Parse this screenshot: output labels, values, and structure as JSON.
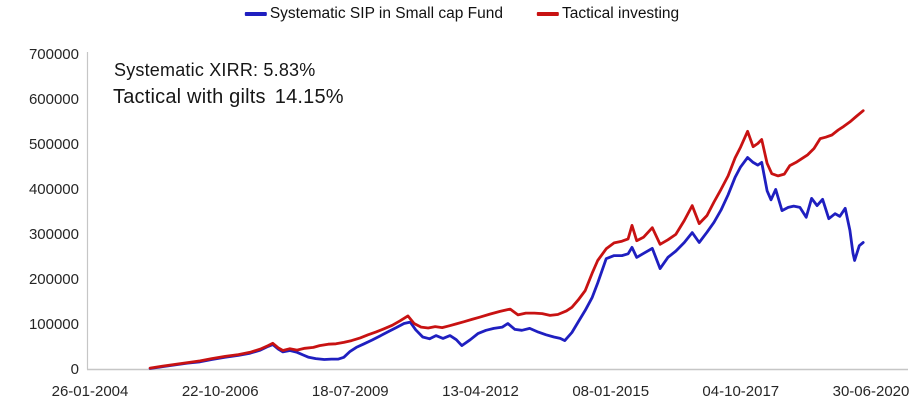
{
  "annotations": {
    "systematic_xirr": "Systematic XIRR: 5.83%",
    "tactical_label": "Tactical with gilts",
    "tactical_value": "14.15%"
  },
  "chart_data": {
    "type": "line",
    "title": "",
    "grid": false,
    "legend_position": "top",
    "x_axis": {
      "tick_labels": [
        "26-01-2004",
        "22-10-2006",
        "18-07-2009",
        "13-04-2012",
        "08-01-2015",
        "04-10-2017",
        "30-06-2020"
      ]
    },
    "y_axis": {
      "min": 0,
      "max": 700000,
      "tick_step": 100000,
      "tick_labels": [
        "0",
        "100000",
        "200000",
        "300000",
        "400000",
        "500000",
        "600000",
        "700000"
      ]
    },
    "series": [
      {
        "name": "Systematic SIP in Small cap Fund",
        "color": "#1f1fc0",
        "points": [
          [
            0.077,
            0
          ],
          [
            0.092,
            4000
          ],
          [
            0.109,
            8000
          ],
          [
            0.125,
            12000
          ],
          [
            0.141,
            15000
          ],
          [
            0.156,
            20000
          ],
          [
            0.173,
            25000
          ],
          [
            0.19,
            29000
          ],
          [
            0.205,
            34000
          ],
          [
            0.218,
            41000
          ],
          [
            0.228,
            49000
          ],
          [
            0.234,
            53000
          ],
          [
            0.241,
            43000
          ],
          [
            0.247,
            37000
          ],
          [
            0.256,
            40000
          ],
          [
            0.265,
            36000
          ],
          [
            0.273,
            30000
          ],
          [
            0.28,
            25000
          ],
          [
            0.289,
            22000
          ],
          [
            0.3,
            20000
          ],
          [
            0.309,
            21000
          ],
          [
            0.318,
            21000
          ],
          [
            0.325,
            25000
          ],
          [
            0.333,
            38000
          ],
          [
            0.341,
            47000
          ],
          [
            0.351,
            55000
          ],
          [
            0.361,
            63000
          ],
          [
            0.371,
            72000
          ],
          [
            0.382,
            82000
          ],
          [
            0.392,
            91000
          ],
          [
            0.402,
            100000
          ],
          [
            0.41,
            103000
          ],
          [
            0.417,
            86000
          ],
          [
            0.426,
            70000
          ],
          [
            0.435,
            66000
          ],
          [
            0.443,
            73000
          ],
          [
            0.452,
            67000
          ],
          [
            0.461,
            73000
          ],
          [
            0.469,
            64000
          ],
          [
            0.476,
            51000
          ],
          [
            0.487,
            64000
          ],
          [
            0.497,
            78000
          ],
          [
            0.507,
            85000
          ],
          [
            0.517,
            89000
          ],
          [
            0.528,
            92000
          ],
          [
            0.535,
            100000
          ],
          [
            0.544,
            87000
          ],
          [
            0.553,
            85000
          ],
          [
            0.563,
            89000
          ],
          [
            0.574,
            81000
          ],
          [
            0.584,
            75000
          ],
          [
            0.594,
            70000
          ],
          [
            0.602,
            67000
          ],
          [
            0.608,
            62000
          ],
          [
            0.617,
            80000
          ],
          [
            0.625,
            103000
          ],
          [
            0.634,
            129000
          ],
          [
            0.643,
            158000
          ],
          [
            0.65,
            190000
          ],
          [
            0.661,
            244000
          ],
          [
            0.671,
            251000
          ],
          [
            0.681,
            251000
          ],
          [
            0.689,
            255000
          ],
          [
            0.694,
            269000
          ],
          [
            0.7,
            247000
          ],
          [
            0.709,
            256000
          ],
          [
            0.72,
            267000
          ],
          [
            0.73,
            222000
          ],
          [
            0.74,
            247000
          ],
          [
            0.75,
            261000
          ],
          [
            0.761,
            280000
          ],
          [
            0.771,
            302000
          ],
          [
            0.78,
            280000
          ],
          [
            0.79,
            303000
          ],
          [
            0.799,
            325000
          ],
          [
            0.808,
            352000
          ],
          [
            0.817,
            386000
          ],
          [
            0.826,
            425000
          ],
          [
            0.833,
            448000
          ],
          [
            0.842,
            469000
          ],
          [
            0.849,
            458000
          ],
          [
            0.855,
            452000
          ],
          [
            0.86,
            458000
          ],
          [
            0.867,
            395000
          ],
          [
            0.872,
            375000
          ],
          [
            0.878,
            398000
          ],
          [
            0.886,
            351000
          ],
          [
            0.894,
            358000
          ],
          [
            0.901,
            361000
          ],
          [
            0.909,
            358000
          ],
          [
            0.917,
            336000
          ],
          [
            0.924,
            378000
          ],
          [
            0.931,
            362000
          ],
          [
            0.938,
            376000
          ],
          [
            0.946,
            333000
          ],
          [
            0.954,
            344000
          ],
          [
            0.96,
            338000
          ],
          [
            0.967,
            356000
          ],
          [
            0.973,
            307000
          ],
          [
            0.977,
            256000
          ],
          [
            0.979,
            240000
          ],
          [
            0.985,
            273000
          ],
          [
            0.99,
            280000
          ]
        ]
      },
      {
        "name": "Tactical investing",
        "color": "#c81212",
        "points": [
          [
            0.077,
            1000
          ],
          [
            0.092,
            5000
          ],
          [
            0.109,
            9000
          ],
          [
            0.125,
            13000
          ],
          [
            0.141,
            17000
          ],
          [
            0.156,
            22000
          ],
          [
            0.173,
            27000
          ],
          [
            0.19,
            31000
          ],
          [
            0.205,
            36000
          ],
          [
            0.218,
            43000
          ],
          [
            0.228,
            51000
          ],
          [
            0.234,
            56000
          ],
          [
            0.241,
            46000
          ],
          [
            0.247,
            40000
          ],
          [
            0.256,
            44000
          ],
          [
            0.265,
            41000
          ],
          [
            0.275,
            45000
          ],
          [
            0.286,
            47000
          ],
          [
            0.294,
            51000
          ],
          [
            0.305,
            54000
          ],
          [
            0.315,
            55000
          ],
          [
            0.325,
            58000
          ],
          [
            0.335,
            62000
          ],
          [
            0.346,
            68000
          ],
          [
            0.356,
            75000
          ],
          [
            0.366,
            81000
          ],
          [
            0.376,
            88000
          ],
          [
            0.387,
            96000
          ],
          [
            0.397,
            106000
          ],
          [
            0.407,
            117000
          ],
          [
            0.415,
            100000
          ],
          [
            0.424,
            92000
          ],
          [
            0.433,
            90000
          ],
          [
            0.442,
            93000
          ],
          [
            0.451,
            91000
          ],
          [
            0.46,
            95000
          ],
          [
            0.469,
            99000
          ],
          [
            0.479,
            104000
          ],
          [
            0.489,
            109000
          ],
          [
            0.499,
            114000
          ],
          [
            0.512,
            121000
          ],
          [
            0.525,
            127000
          ],
          [
            0.538,
            132000
          ],
          [
            0.548,
            119000
          ],
          [
            0.558,
            123000
          ],
          [
            0.569,
            123000
          ],
          [
            0.579,
            122000
          ],
          [
            0.589,
            118000
          ],
          [
            0.599,
            120000
          ],
          [
            0.61,
            128000
          ],
          [
            0.617,
            136000
          ],
          [
            0.625,
            152000
          ],
          [
            0.634,
            173000
          ],
          [
            0.643,
            212000
          ],
          [
            0.65,
            240000
          ],
          [
            0.661,
            266000
          ],
          [
            0.671,
            279000
          ],
          [
            0.681,
            283000
          ],
          [
            0.689,
            288000
          ],
          [
            0.694,
            318000
          ],
          [
            0.7,
            284000
          ],
          [
            0.709,
            292000
          ],
          [
            0.72,
            313000
          ],
          [
            0.73,
            276000
          ],
          [
            0.74,
            286000
          ],
          [
            0.75,
            298000
          ],
          [
            0.761,
            329000
          ],
          [
            0.771,
            362000
          ],
          [
            0.78,
            322000
          ],
          [
            0.79,
            340000
          ],
          [
            0.799,
            370000
          ],
          [
            0.808,
            398000
          ],
          [
            0.817,
            428000
          ],
          [
            0.826,
            468000
          ],
          [
            0.833,
            492000
          ],
          [
            0.842,
            527000
          ],
          [
            0.849,
            493000
          ],
          [
            0.855,
            500000
          ],
          [
            0.86,
            509000
          ],
          [
            0.867,
            456000
          ],
          [
            0.873,
            433000
          ],
          [
            0.881,
            428000
          ],
          [
            0.889,
            432000
          ],
          [
            0.896,
            451000
          ],
          [
            0.904,
            458000
          ],
          [
            0.912,
            467000
          ],
          [
            0.919,
            475000
          ],
          [
            0.927,
            489000
          ],
          [
            0.935,
            511000
          ],
          [
            0.942,
            514000
          ],
          [
            0.95,
            519000
          ],
          [
            0.958,
            530000
          ],
          [
            0.965,
            538000
          ],
          [
            0.973,
            548000
          ],
          [
            0.981,
            560000
          ],
          [
            0.99,
            573000
          ]
        ]
      }
    ]
  }
}
